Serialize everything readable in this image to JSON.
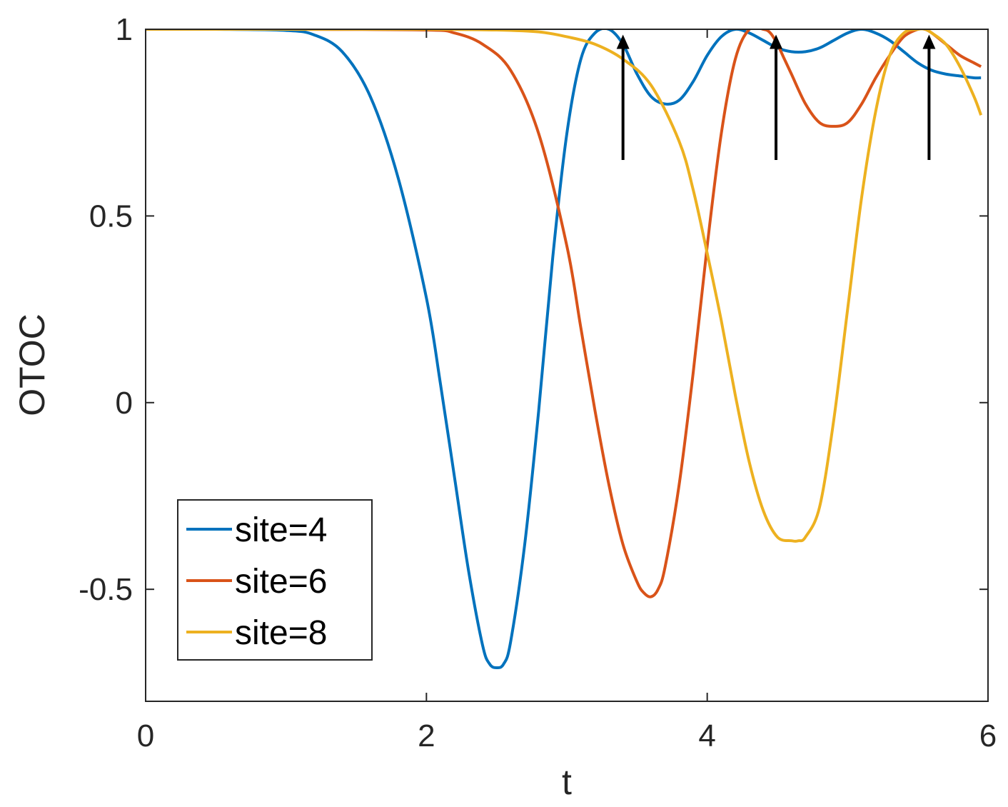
{
  "chart_data": {
    "type": "line",
    "title": "",
    "xlabel": "t",
    "ylabel": "OTOC",
    "xlim": [
      0,
      6
    ],
    "ylim": [
      -0.8,
      1
    ],
    "xticks": [
      {
        "value": 0,
        "label": "0"
      },
      {
        "value": 2,
        "label": "2"
      },
      {
        "value": 4,
        "label": "4"
      },
      {
        "value": 6,
        "label": "6"
      }
    ],
    "yticks": [
      {
        "value": -0.5,
        "label": "-0.5"
      },
      {
        "value": 0,
        "label": "0"
      },
      {
        "value": 0.5,
        "label": "0.5"
      },
      {
        "value": 1,
        "label": "1"
      }
    ],
    "grid": false,
    "legend_position": "bottom-left",
    "series": [
      {
        "name": "site=4",
        "color": "#0072BD",
        "x": [
          0,
          0.5,
          1.0,
          1.2,
          1.4,
          1.6,
          1.8,
          2.0,
          2.1,
          2.2,
          2.3,
          2.4,
          2.45,
          2.5,
          2.55,
          2.6,
          2.7,
          2.8,
          2.9,
          3.0,
          3.1,
          3.2,
          3.3,
          3.4,
          3.5,
          3.6,
          3.7,
          3.8,
          3.9,
          4.0,
          4.1,
          4.2,
          4.3,
          4.4,
          4.5,
          4.6,
          4.7,
          4.8,
          4.9,
          5.0,
          5.1,
          5.2,
          5.3,
          5.4,
          5.5,
          5.6,
          5.7,
          5.8,
          5.9,
          5.95
        ],
        "y": [
          1.0,
          1.0,
          0.997,
          0.985,
          0.94,
          0.82,
          0.6,
          0.28,
          0.05,
          -0.2,
          -0.45,
          -0.65,
          -0.7,
          -0.71,
          -0.7,
          -0.64,
          -0.38,
          -0.02,
          0.39,
          0.72,
          0.92,
          0.99,
          1.0,
          0.96,
          0.88,
          0.82,
          0.8,
          0.81,
          0.86,
          0.93,
          0.98,
          1.0,
          0.99,
          0.97,
          0.95,
          0.94,
          0.94,
          0.95,
          0.97,
          0.99,
          1.0,
          0.99,
          0.97,
          0.94,
          0.91,
          0.89,
          0.88,
          0.875,
          0.87,
          0.87
        ]
      },
      {
        "name": "site=6",
        "color": "#D95319",
        "x": [
          0,
          1.0,
          2.0,
          2.2,
          2.4,
          2.6,
          2.8,
          3.0,
          3.1,
          3.2,
          3.3,
          3.4,
          3.5,
          3.55,
          3.6,
          3.65,
          3.7,
          3.8,
          3.9,
          4.0,
          4.1,
          4.2,
          4.3,
          4.4,
          4.45,
          4.5,
          4.55,
          4.6,
          4.7,
          4.8,
          4.9,
          5.0,
          5.1,
          5.2,
          5.3,
          5.4,
          5.5,
          5.55,
          5.6,
          5.7,
          5.8,
          5.9,
          5.95
        ],
        "y": [
          1.0,
          1.0,
          0.998,
          0.99,
          0.96,
          0.89,
          0.72,
          0.42,
          0.2,
          -0.02,
          -0.22,
          -0.38,
          -0.48,
          -0.51,
          -0.52,
          -0.5,
          -0.44,
          -0.22,
          0.08,
          0.42,
          0.72,
          0.92,
          1.0,
          1.0,
          0.99,
          0.96,
          0.92,
          0.88,
          0.8,
          0.75,
          0.74,
          0.75,
          0.8,
          0.87,
          0.93,
          0.98,
          1.0,
          1.0,
          0.99,
          0.96,
          0.93,
          0.91,
          0.9
        ]
      },
      {
        "name": "site=8",
        "color": "#EDB120",
        "x": [
          0,
          1.0,
          2.0,
          2.5,
          2.8,
          3.0,
          3.2,
          3.4,
          3.6,
          3.8,
          3.9,
          4.0,
          4.1,
          4.2,
          4.3,
          4.4,
          4.5,
          4.6,
          4.65,
          4.7,
          4.8,
          4.9,
          5.0,
          5.1,
          5.2,
          5.3,
          5.4,
          5.5,
          5.55,
          5.6,
          5.7,
          5.8,
          5.9,
          5.95
        ],
        "y": [
          1.0,
          1.0,
          1.0,
          0.998,
          0.993,
          0.98,
          0.96,
          0.92,
          0.85,
          0.7,
          0.57,
          0.4,
          0.22,
          0.02,
          -0.16,
          -0.29,
          -0.36,
          -0.37,
          -0.37,
          -0.36,
          -0.28,
          -0.05,
          0.25,
          0.55,
          0.78,
          0.93,
          0.99,
          1.0,
          1.0,
          0.99,
          0.96,
          0.9,
          0.82,
          0.77
        ]
      }
    ],
    "annotations": [
      {
        "type": "arrow",
        "x": 3.4,
        "y_from": 0.65,
        "y_to": 0.98
      },
      {
        "type": "arrow",
        "x": 4.49,
        "y_from": 0.65,
        "y_to": 0.98
      },
      {
        "type": "arrow",
        "x": 5.58,
        "y_from": 0.65,
        "y_to": 0.98
      }
    ]
  }
}
